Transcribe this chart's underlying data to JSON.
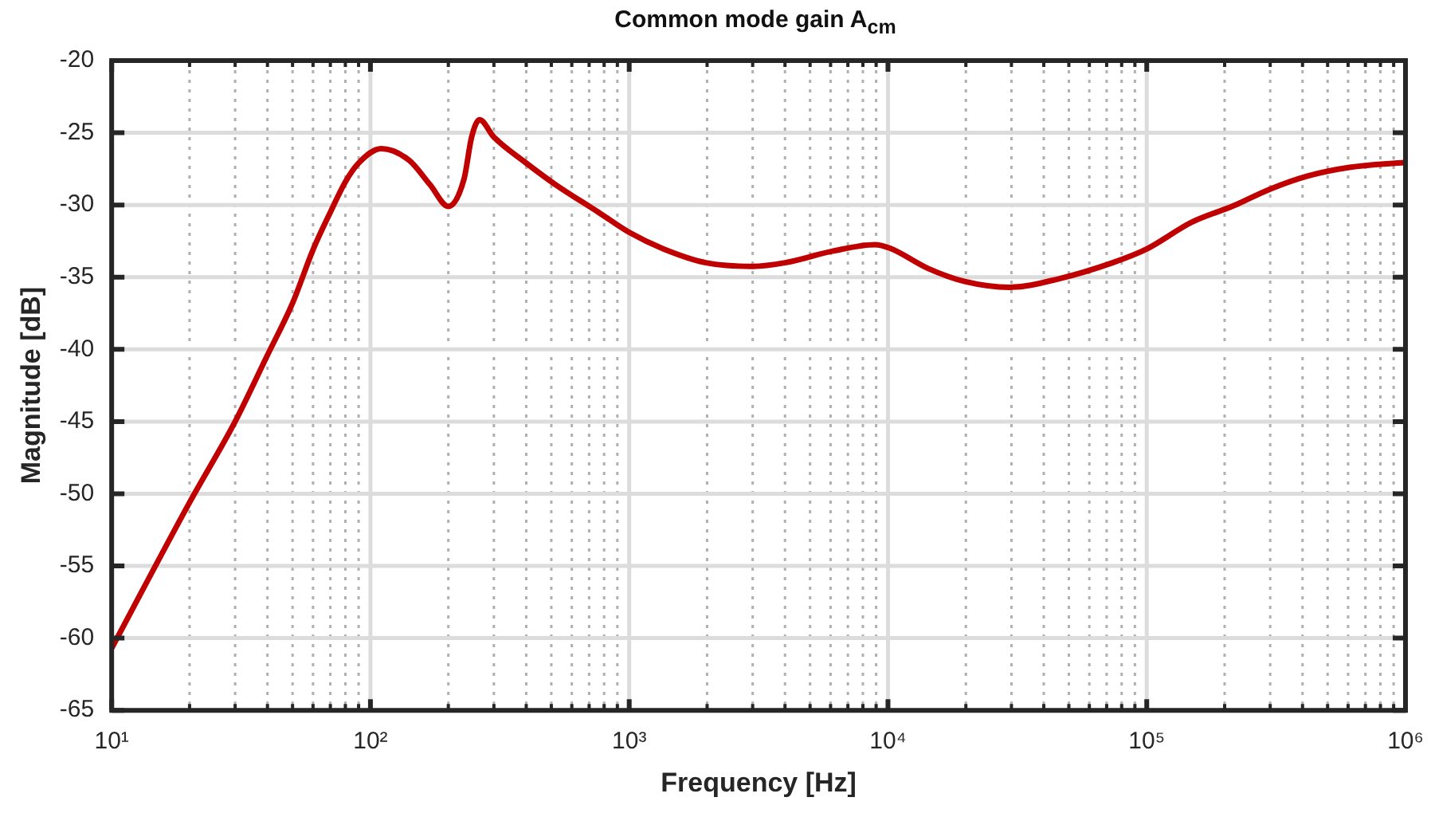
{
  "chart_data": {
    "type": "line",
    "title": "Common mode gain A$_{cm}$",
    "xlabel": "Frequency [Hz]",
    "ylabel": "Magnitude [dB]",
    "log": "x",
    "grid": true,
    "legend": false,
    "marker": "none",
    "line_style": "solid",
    "xlim": [
      10,
      1000000
    ],
    "ylim": [
      -65,
      -20
    ],
    "xticks": [
      {
        "value": 10,
        "label": "10¹"
      },
      {
        "value": 20,
        "label": null
      },
      {
        "value": 30,
        "label": null
      },
      {
        "value": 40,
        "label": null
      },
      {
        "value": 50,
        "label": null
      },
      {
        "value": 60,
        "label": null
      },
      {
        "value": 70,
        "label": null
      },
      {
        "value": 80,
        "label": null
      },
      {
        "value": 90,
        "label": null
      },
      {
        "value": 100,
        "label": "10²"
      },
      {
        "value": 200,
        "label": null
      },
      {
        "value": 300,
        "label": null
      },
      {
        "value": 400,
        "label": null
      },
      {
        "value": 500,
        "label": null
      },
      {
        "value": 600,
        "label": null
      },
      {
        "value": 700,
        "label": null
      },
      {
        "value": 800,
        "label": null
      },
      {
        "value": 900,
        "label": null
      },
      {
        "value": 1000,
        "label": "10³"
      },
      {
        "value": 2000,
        "label": null
      },
      {
        "value": 3000,
        "label": null
      },
      {
        "value": 4000,
        "label": null
      },
      {
        "value": 5000,
        "label": null
      },
      {
        "value": 6000,
        "label": null
      },
      {
        "value": 7000,
        "label": null
      },
      {
        "value": 8000,
        "label": null
      },
      {
        "value": 9000,
        "label": null
      },
      {
        "value": 10000,
        "label": "10⁴"
      },
      {
        "value": 20000,
        "label": null
      },
      {
        "value": 30000,
        "label": null
      },
      {
        "value": 40000,
        "label": null
      },
      {
        "value": 50000,
        "label": null
      },
      {
        "value": 60000,
        "label": null
      },
      {
        "value": 70000,
        "label": null
      },
      {
        "value": 80000,
        "label": null
      },
      {
        "value": 90000,
        "label": null
      },
      {
        "value": 100000,
        "label": "10⁵"
      },
      {
        "value": 200000,
        "label": null
      },
      {
        "value": 300000,
        "label": null
      },
      {
        "value": 400000,
        "label": null
      },
      {
        "value": 500000,
        "label": null
      },
      {
        "value": 600000,
        "label": null
      },
      {
        "value": 700000,
        "label": null
      },
      {
        "value": 800000,
        "label": null
      },
      {
        "value": 900000,
        "label": null
      },
      {
        "value": 1000000,
        "label": "10⁶"
      }
    ],
    "yticks": [
      -65,
      -60,
      -55,
      -50,
      -45,
      -40,
      -35,
      -30,
      -25,
      -20
    ],
    "series": [
      {
        "color": "#c00000",
        "x": [
          10,
          20,
          30,
          40,
          50,
          60,
          70,
          80,
          90,
          110,
          141,
          170,
          200,
          230,
          246,
          264,
          300,
          400,
          520,
          760,
          1000,
          1360,
          1980,
          3000,
          4000,
          6100,
          8900,
          10200,
          14300,
          19800,
          29500,
          46000,
          73800,
          100000,
          149000,
          217000,
          300000,
          418000,
          607000,
          1000000
        ],
        "values": [
          -60.7,
          -50.6,
          -45.0,
          -40.4,
          -36.8,
          -33.1,
          -30.5,
          -28.4,
          -27.1,
          -26.1,
          -26.9,
          -28.6,
          -30.1,
          -28.2,
          -25.3,
          -24.1,
          -25.3,
          -27.1,
          -28.6,
          -30.5,
          -31.9,
          -33.05,
          -34.0,
          -34.25,
          -34.0,
          -33.2,
          -32.75,
          -33.0,
          -34.4,
          -35.3,
          -35.7,
          -35.1,
          -34.0,
          -33.05,
          -31.2,
          -30.05,
          -28.9,
          -28.0,
          -27.4,
          -27.05
        ]
      }
    ]
  }
}
